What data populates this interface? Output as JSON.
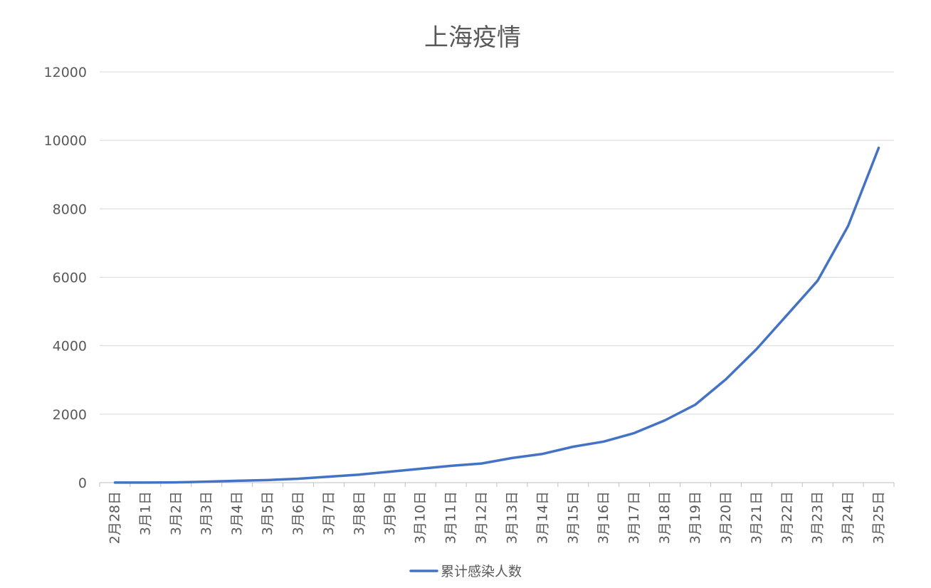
{
  "chart_data": {
    "type": "line",
    "title": "上海疫情",
    "xlabel": "",
    "ylabel": "",
    "ylim": [
      0,
      12000
    ],
    "yticks": [
      0,
      2000,
      4000,
      6000,
      8000,
      10000,
      12000
    ],
    "grid": true,
    "legend_position": "bottom",
    "categories": [
      "2月28日",
      "3月1日",
      "3月2日",
      "3月3日",
      "3月4日",
      "3月5日",
      "3月6日",
      "3月7日",
      "3月8日",
      "3月9日",
      "3月10日",
      "3月11日",
      "3月12日",
      "3月13日",
      "3月14日",
      "3月15日",
      "3月16日",
      "3月17日",
      "3月18日",
      "3月19日",
      "3月20日",
      "3月21日",
      "3月22日",
      "3月23日",
      "3月24日",
      "3月25日"
    ],
    "series": [
      {
        "name": "累计感染人数",
        "color": "#4472C4",
        "values": [
          2,
          3,
          8,
          30,
          55,
          75,
          115,
          175,
          235,
          320,
          405,
          490,
          560,
          720,
          840,
          1050,
          1200,
          1450,
          1820,
          2280,
          3020,
          3900,
          4900,
          5900,
          7500,
          9780
        ]
      }
    ]
  }
}
